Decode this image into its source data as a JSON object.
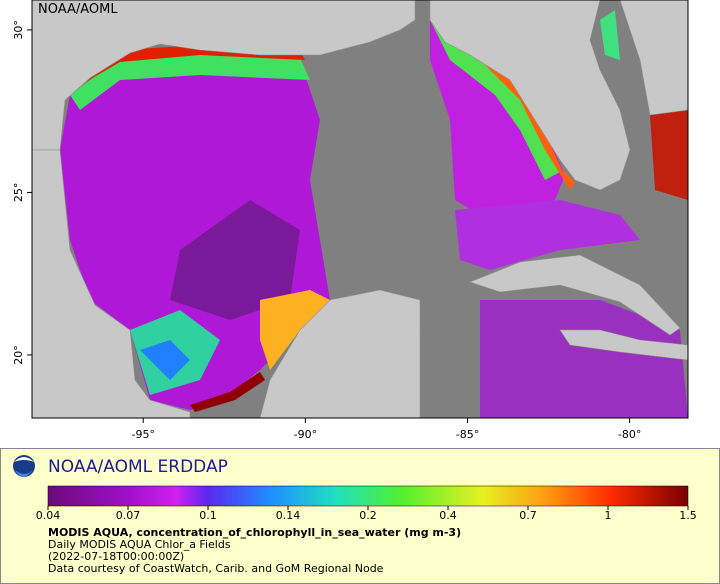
{
  "map": {
    "watermark": "NOAA/AOML",
    "lon_range": [
      -98.43,
      -78.2
    ],
    "lat_range": [
      18.06,
      30.92
    ],
    "lon_ticks": [
      {
        "value": -95,
        "label": "-95°"
      },
      {
        "value": -90,
        "label": "-90°"
      },
      {
        "value": -85,
        "label": "-85°"
      },
      {
        "value": -80,
        "label": "-80°"
      }
    ],
    "lat_ticks": [
      {
        "value": 30,
        "label": "30°"
      },
      {
        "value": 25,
        "label": "25°"
      },
      {
        "value": 20,
        "label": "20°"
      }
    ]
  },
  "legend": {
    "brand": "NOAA/AOML ERDDAP",
    "colorbar_ticks": [
      0.04,
      0.07,
      0.1,
      0.14,
      0.2,
      0.4,
      0.7,
      1,
      1.5
    ],
    "variable": "MODIS AQUA, concentration_of_chlorophyll_in_sea_water (mg m-3)",
    "dataset": "Daily MODIS AQUA Chlor_a Fields",
    "time": "(2022-07-18T00:00:00Z)",
    "credit": "Data courtesy of CoastWatch, Carib. and GoM Regional Node"
  }
}
